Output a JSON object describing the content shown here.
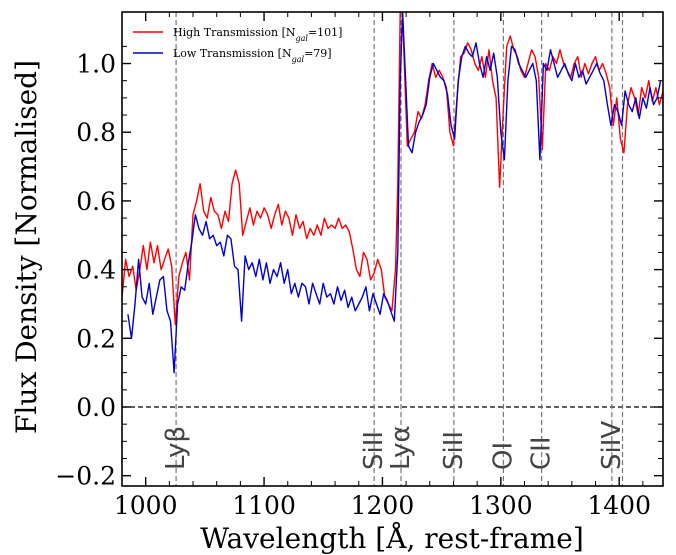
{
  "chart_data": {
    "type": "line",
    "xlabel": "Wavelength [Å, rest-frame]",
    "ylabel": "Flux Density [Normalised]",
    "xlim": [
      980,
      1437
    ],
    "ylim": [
      -0.23,
      1.15
    ],
    "xticks": [
      1000,
      1100,
      1200,
      1300,
      1400
    ],
    "yticks": [
      -0.2,
      0.0,
      0.2,
      0.4,
      0.6,
      0.8,
      1.0
    ],
    "ytick_labels": [
      "−0.2",
      "0.0",
      "0.2",
      "0.4",
      "0.6",
      "0.8",
      "1.0"
    ],
    "zero_line": 0.0,
    "legend_position": "top-left",
    "legend": [
      {
        "html": "High Transmission [N<tspan baseline-shift='sub' font-size='8' font-style='italic'>gal</tspan>=101]",
        "color": "#ff0000"
      },
      {
        "html": "Low Transmission [N<tspan baseline-shift='sub' font-size='8' font-style='italic'>gal</tspan>=79]",
        "color": "#0000cc"
      }
    ],
    "lines": [
      {
        "label": "Lyβ",
        "wavelength": 1025.7
      },
      {
        "label": "SiII",
        "wavelength": 1193
      },
      {
        "label": "Lyα",
        "wavelength": 1215.7
      },
      {
        "label": "SiII",
        "wavelength": 1260.4
      },
      {
        "label": "OI",
        "wavelength": 1302.2
      },
      {
        "label": "CII",
        "wavelength": 1334.5
      },
      {
        "label": "SiIV",
        "wavelength": 1393.8
      },
      {
        "label": "",
        "wavelength": 1402.8
      }
    ],
    "series": [
      {
        "color": "#ff0000",
        "x": [
          980,
          983,
          986,
          989,
          992,
          995,
          998,
          1001,
          1004,
          1007,
          1010,
          1013,
          1016,
          1019,
          1022,
          1025,
          1028,
          1031,
          1034,
          1037,
          1040,
          1043,
          1046,
          1049,
          1052,
          1055,
          1058,
          1061,
          1064,
          1067,
          1070,
          1073,
          1076,
          1079,
          1082,
          1085,
          1088,
          1091,
          1094,
          1097,
          1100,
          1103,
          1106,
          1109,
          1112,
          1115,
          1118,
          1121,
          1124,
          1127,
          1130,
          1133,
          1136,
          1139,
          1142,
          1145,
          1148,
          1151,
          1154,
          1157,
          1160,
          1163,
          1166,
          1169,
          1172,
          1175,
          1178,
          1181,
          1184,
          1187,
          1190,
          1193,
          1196,
          1199,
          1202,
          1205,
          1208,
          1211,
          1213,
          1215,
          1217,
          1219,
          1221,
          1224,
          1227,
          1230,
          1233,
          1236,
          1239,
          1242,
          1245,
          1248,
          1251,
          1254,
          1257,
          1260,
          1263,
          1266,
          1269,
          1272,
          1275,
          1278,
          1281,
          1284,
          1287,
          1290,
          1293,
          1296,
          1299,
          1302,
          1305,
          1308,
          1311,
          1314,
          1317,
          1320,
          1323,
          1326,
          1329,
          1332,
          1335,
          1338,
          1341,
          1344,
          1347,
          1350,
          1353,
          1356,
          1359,
          1362,
          1365,
          1368,
          1371,
          1374,
          1377,
          1380,
          1383,
          1386,
          1389,
          1392,
          1395,
          1398,
          1401,
          1404,
          1407,
          1410,
          1413,
          1416,
          1419,
          1422,
          1425,
          1428,
          1431,
          1434,
          1437
        ],
        "y": [
          0.32,
          0.43,
          0.38,
          0.41,
          0.34,
          0.4,
          0.47,
          0.4,
          0.48,
          0.42,
          0.47,
          0.4,
          0.43,
          0.46,
          0.41,
          0.24,
          0.38,
          0.42,
          0.45,
          0.37,
          0.56,
          0.6,
          0.65,
          0.57,
          0.55,
          0.61,
          0.57,
          0.56,
          0.52,
          0.57,
          0.54,
          0.65,
          0.69,
          0.65,
          0.5,
          0.54,
          0.58,
          0.53,
          0.57,
          0.55,
          0.58,
          0.56,
          0.52,
          0.56,
          0.59,
          0.53,
          0.57,
          0.55,
          0.5,
          0.56,
          0.52,
          0.54,
          0.49,
          0.52,
          0.5,
          0.53,
          0.5,
          0.55,
          0.52,
          0.53,
          0.52,
          0.55,
          0.52,
          0.53,
          0.51,
          0.46,
          0.4,
          0.38,
          0.45,
          0.43,
          0.37,
          0.39,
          0.43,
          0.4,
          0.32,
          0.3,
          0.28,
          0.4,
          0.65,
          1.15,
          1.15,
          0.95,
          0.76,
          0.78,
          0.8,
          0.86,
          0.84,
          0.88,
          0.95,
          1.0,
          0.96,
          0.98,
          0.96,
          0.93,
          0.8,
          0.76,
          0.9,
          1.02,
          1.03,
          1.06,
          1.04,
          1.0,
          0.98,
          1.02,
          0.96,
          1.04,
          0.95,
          0.9,
          0.64,
          0.86,
          1.05,
          1.08,
          1.04,
          1.02,
          0.98,
          0.96,
          1.0,
          1.04,
          1.02,
          0.96,
          0.75,
          1.0,
          0.98,
          1.02,
          1.0,
          1.04,
          1.0,
          0.98,
          0.96,
          1.0,
          1.02,
          0.96,
          1.0,
          0.97,
          1.0,
          1.02,
          0.98,
          1.0,
          0.97,
          0.93,
          0.82,
          0.9,
          0.78,
          0.74,
          0.88,
          0.93,
          0.9,
          0.85,
          0.93,
          0.9,
          0.95,
          0.89,
          0.93,
          0.88,
          0.92
        ]
      },
      {
        "color": "#0000cc",
        "x": [
          985,
          988,
          991,
          994,
          997,
          1000,
          1003,
          1006,
          1009,
          1012,
          1015,
          1018,
          1021,
          1024,
          1027,
          1030,
          1033,
          1036,
          1039,
          1042,
          1045,
          1048,
          1051,
          1054,
          1057,
          1060,
          1063,
          1066,
          1069,
          1072,
          1075,
          1078,
          1081,
          1084,
          1087,
          1090,
          1093,
          1096,
          1099,
          1102,
          1105,
          1108,
          1111,
          1114,
          1117,
          1120,
          1123,
          1126,
          1129,
          1132,
          1135,
          1138,
          1141,
          1144,
          1147,
          1150,
          1153,
          1156,
          1159,
          1162,
          1165,
          1168,
          1171,
          1174,
          1177,
          1180,
          1183,
          1186,
          1189,
          1192,
          1195,
          1198,
          1201,
          1204,
          1207,
          1210,
          1213,
          1215,
          1217,
          1219,
          1222,
          1225,
          1228,
          1231,
          1234,
          1237,
          1240,
          1243,
          1246,
          1249,
          1252,
          1255,
          1258,
          1261,
          1264,
          1267,
          1270,
          1273,
          1276,
          1279,
          1282,
          1285,
          1288,
          1291,
          1294,
          1297,
          1300,
          1303,
          1306,
          1309,
          1312,
          1315,
          1318,
          1321,
          1324,
          1327,
          1330,
          1333,
          1336,
          1339,
          1342,
          1345,
          1348,
          1351,
          1354,
          1357,
          1360,
          1363,
          1366,
          1369,
          1372,
          1375,
          1378,
          1381,
          1384,
          1387,
          1390,
          1393,
          1396,
          1399,
          1402,
          1405,
          1408,
          1411,
          1414,
          1417,
          1420,
          1423,
          1426,
          1429,
          1432,
          1435
        ],
        "y": [
          0.27,
          0.2,
          0.3,
          0.43,
          0.32,
          0.3,
          0.36,
          0.27,
          0.32,
          0.37,
          0.38,
          0.28,
          0.25,
          0.1,
          0.3,
          0.35,
          0.34,
          0.42,
          0.48,
          0.56,
          0.52,
          0.5,
          0.54,
          0.49,
          0.5,
          0.47,
          0.48,
          0.44,
          0.5,
          0.49,
          0.41,
          0.4,
          0.25,
          0.44,
          0.4,
          0.42,
          0.38,
          0.43,
          0.37,
          0.42,
          0.36,
          0.4,
          0.38,
          0.42,
          0.36,
          0.4,
          0.33,
          0.36,
          0.32,
          0.36,
          0.35,
          0.3,
          0.36,
          0.33,
          0.3,
          0.36,
          0.32,
          0.33,
          0.3,
          0.35,
          0.31,
          0.34,
          0.29,
          0.32,
          0.28,
          0.3,
          0.32,
          0.35,
          0.28,
          0.33,
          0.3,
          0.27,
          0.33,
          0.31,
          0.28,
          0.25,
          0.45,
          0.95,
          1.15,
          1.0,
          0.76,
          0.74,
          0.8,
          0.83,
          0.85,
          0.88,
          0.96,
          1.0,
          0.98,
          0.96,
          0.95,
          0.91,
          0.82,
          0.78,
          0.95,
          1.02,
          1.05,
          1.03,
          1.02,
          1.06,
          1.0,
          0.96,
          1.02,
          0.98,
          1.03,
          0.96,
          0.8,
          0.72,
          0.95,
          1.05,
          1.04,
          1.0,
          0.98,
          0.96,
          0.98,
          1.0,
          0.95,
          0.72,
          1.0,
          0.98,
          1.04,
          1.0,
          0.96,
          0.98,
          1.0,
          0.97,
          0.95,
          1.0,
          0.96,
          0.98,
          0.94,
          0.96,
          0.98,
          1.0,
          0.97,
          0.95,
          0.88,
          0.82,
          0.88,
          0.86,
          0.82,
          0.92,
          0.88,
          0.86,
          0.9,
          0.84,
          0.9,
          0.87,
          0.93,
          0.88,
          0.9,
          0.95
        ]
      }
    ]
  }
}
